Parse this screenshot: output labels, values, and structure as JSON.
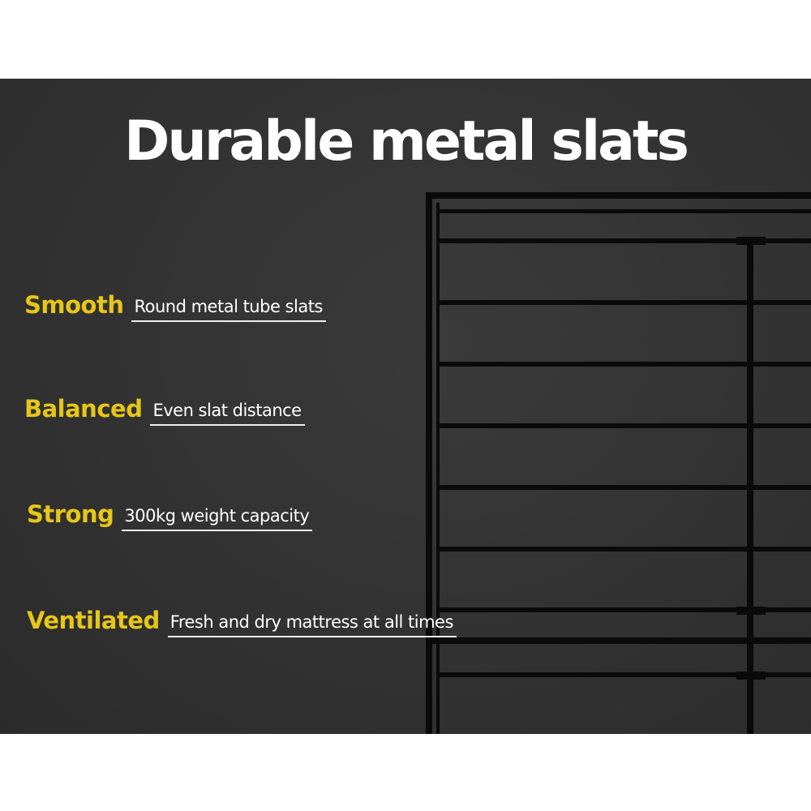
{
  "title": "Durable metal slats",
  "features": [
    {
      "key": "Smooth",
      "value": "Round metal tube slats"
    },
    {
      "key": "Balanced",
      "value": "Even slat distance"
    },
    {
      "key": "Strong",
      "value": "300kg weight capacity"
    },
    {
      "key": "Ventilated",
      "value": "Fresh and dry mattress at all times"
    }
  ],
  "colors": {
    "accent": "#e6c619",
    "background": "#333333",
    "frame": "#0a0a0a"
  }
}
